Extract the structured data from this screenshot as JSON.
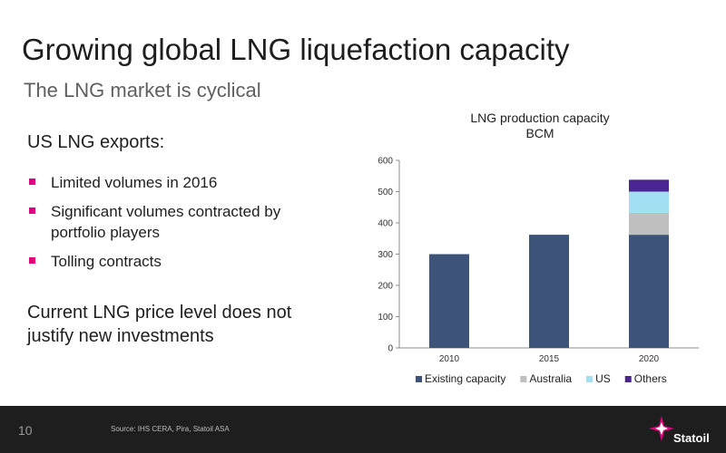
{
  "slide": {
    "title": "Growing global LNG liquefaction capacity",
    "subtitle": "The LNG market is cyclical",
    "left_heading": "US LNG exports:",
    "bullets": [
      "Limited volumes in 2016",
      "Significant volumes contracted by portfolio players",
      "Tolling contracts"
    ],
    "conclusion": "Current LNG price level does not justify new investments",
    "footer": {
      "page_number": "10",
      "source": "Source:  IHS CERA, Pira, Statoil ASA",
      "logo_text": "Statoil"
    }
  },
  "colors": {
    "bullet": "#e4007c",
    "footer_bg": "#1e1e1e"
  },
  "chart_data": {
    "type": "bar",
    "stacked": true,
    "title": "LNG production capacity",
    "subtitle": "BCM",
    "categories": [
      "2010",
      "2015",
      "2020"
    ],
    "series": [
      {
        "name": "Existing capacity",
        "color": "#3d5379",
        "values": [
          300,
          362,
          362
        ]
      },
      {
        "name": "Australia",
        "color": "#bfbfbf",
        "values": [
          0,
          0,
          70
        ]
      },
      {
        "name": "US",
        "color": "#a2dff2",
        "values": [
          0,
          0,
          68
        ]
      },
      {
        "name": "Others",
        "color": "#4a2493",
        "values": [
          0,
          0,
          38
        ]
      }
    ],
    "ylim": [
      0,
      600
    ],
    "yticks": [
      0,
      100,
      200,
      300,
      400,
      500,
      600
    ],
    "grid": false,
    "legend": "bottom"
  }
}
